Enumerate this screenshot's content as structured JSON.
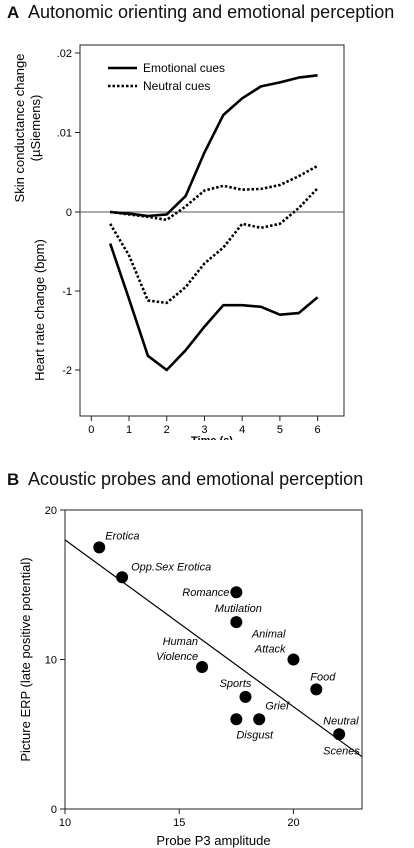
{
  "panels": {
    "a": {
      "letter": "A",
      "title": "Autonomic orienting and emotional perception"
    },
    "b": {
      "letter": "B",
      "title": "Acoustic  probes and emotional  perception"
    }
  },
  "chart_data": [
    {
      "type": "line",
      "title": "Autonomic orienting and emotional perception",
      "xlabel": "Time (s)",
      "ylabel_upper": "Skin conductance change (µSiemens)",
      "ylabel_lower": "Heart rate change (bpm)",
      "xlim": [
        -0.3,
        6.7
      ],
      "x_ticks": [
        0,
        1,
        2,
        3,
        4,
        5,
        6
      ],
      "x_tick_labels": [
        "0",
        "1",
        "2",
        "3",
        "4",
        "5",
        "6"
      ],
      "upper_ticks": [
        {
          "value": 0,
          "label": "0"
        },
        {
          "value": 0.01,
          "label": ".01"
        },
        {
          "value": 0.02,
          "label": ".02"
        }
      ],
      "lower_ticks": [
        {
          "value": -1,
          "label": "-1"
        },
        {
          "value": -2,
          "label": "-2"
        }
      ],
      "legend": {
        "position": "top-left",
        "entries": [
          {
            "label": "Emotional cues",
            "style": "solid"
          },
          {
            "label": "Neutral cues",
            "style": "dotted"
          }
        ]
      },
      "zero_line": true,
      "x": [
        0.5,
        1,
        1.5,
        2,
        2.5,
        3,
        3.5,
        4,
        4.5,
        5,
        5.5,
        6
      ],
      "series": [
        {
          "name": "Emotional cues",
          "measure": "skin conductance",
          "style": "solid",
          "values": [
            0,
            -0.0002,
            -0.0005,
            -0.0003,
            0.002,
            0.0075,
            0.0122,
            0.0143,
            0.0158,
            0.0163,
            0.0169,
            0.0172
          ]
        },
        {
          "name": "Neutral cues",
          "measure": "skin conductance",
          "style": "dotted",
          "values": [
            0,
            -0.0003,
            -0.0006,
            -0.001,
            0.0007,
            0.0027,
            0.0033,
            0.0028,
            0.0029,
            0.0034,
            0.0045,
            0.0058
          ]
        },
        {
          "name": "Emotional cues",
          "measure": "heart rate",
          "style": "solid",
          "values": [
            -0.4,
            -1.1,
            -1.82,
            -2.0,
            -1.75,
            -1.45,
            -1.18,
            -1.18,
            -1.2,
            -1.3,
            -1.28,
            -1.08
          ]
        },
        {
          "name": "Neutral cues",
          "measure": "heart rate",
          "style": "dotted",
          "values": [
            -0.15,
            -0.55,
            -1.12,
            -1.15,
            -0.95,
            -0.65,
            -0.45,
            -0.15,
            -0.2,
            -0.15,
            0.05,
            0.3
          ]
        }
      ]
    },
    {
      "type": "scatter",
      "title": "Acoustic  probes and emotional  perception",
      "xlabel": "Probe P3 amplitude",
      "ylabel": "Picture ERP (late positive potential)",
      "xlim": [
        10,
        23
      ],
      "ylim": [
        0,
        20
      ],
      "x_ticks": [
        10,
        15,
        20
      ],
      "y_ticks": [
        0,
        10,
        20
      ],
      "grid": false,
      "points": [
        {
          "label": "Erotica",
          "x": 11.5,
          "y": 17.5
        },
        {
          "label": "Opp.Sex Erotica",
          "x": 12.5,
          "y": 15.5
        },
        {
          "label": "Romance",
          "x": 17.5,
          "y": 14.5
        },
        {
          "label": "Mutilation",
          "x": 17.5,
          "y": 12.5
        },
        {
          "label": "Animal Attack",
          "x": 20,
          "y": 10
        },
        {
          "label": "Human Violence",
          "x": 16,
          "y": 9.5
        },
        {
          "label": "Food",
          "x": 21,
          "y": 8
        },
        {
          "label": "Sports",
          "x": 17.9,
          "y": 7.5
        },
        {
          "label": "Grief",
          "x": 18.5,
          "y": 6
        },
        {
          "label": "Disgust",
          "x": 17.5,
          "y": 6
        },
        {
          "label": "Neutral Scenes",
          "x": 22,
          "y": 5
        }
      ],
      "regression_line": {
        "x": [
          10,
          23
        ],
        "y": [
          18,
          3.5
        ]
      }
    }
  ]
}
